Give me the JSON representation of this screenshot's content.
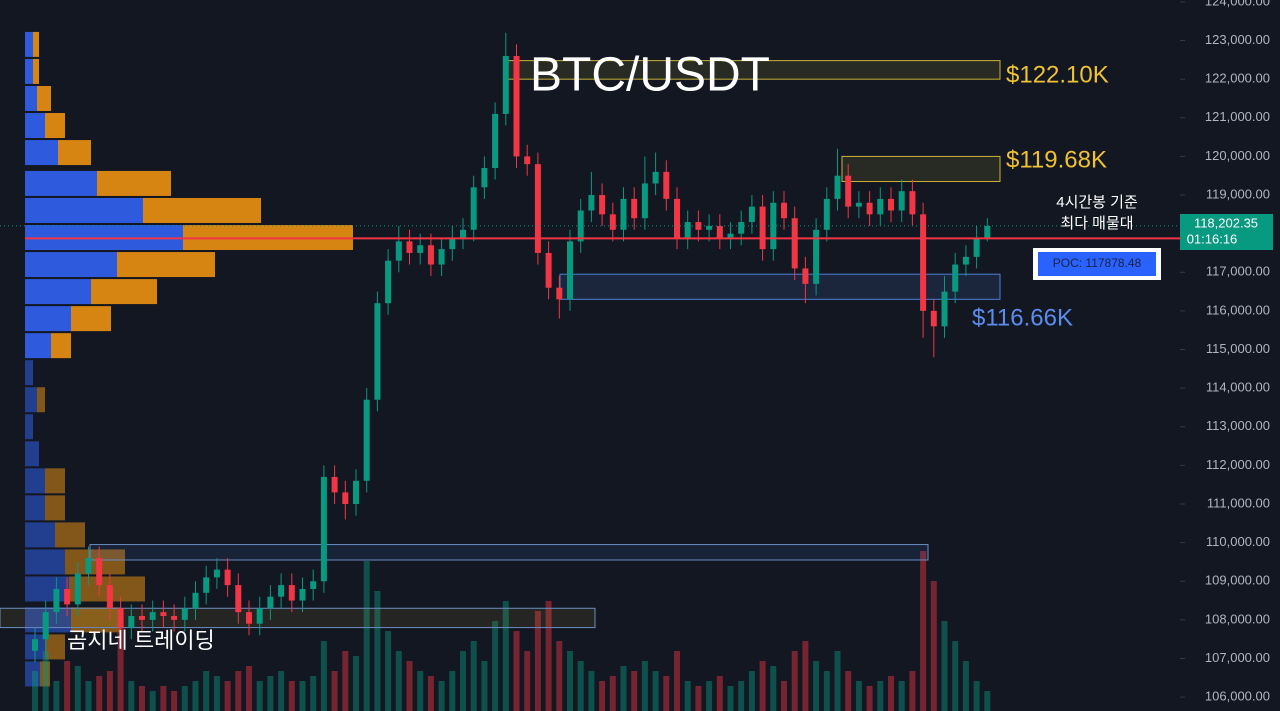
{
  "chart_data": {
    "type": "candlestick",
    "title": "BTC/USDT",
    "ylim": [
      105640,
      124050
    ],
    "yticks": [
      {
        "value": 106000,
        "label": "106,000.00"
      },
      {
        "value": 107000,
        "label": "107,000.00"
      },
      {
        "value": 108000,
        "label": "108,000.00"
      },
      {
        "value": 109000,
        "label": "109,000.00"
      },
      {
        "value": 110000,
        "label": "110,000.00"
      },
      {
        "value": 111000,
        "label": "111,000.00"
      },
      {
        "value": 112000,
        "label": "112,000.00"
      },
      {
        "value": 113000,
        "label": "113,000.00"
      },
      {
        "value": 114000,
        "label": "114,000.00"
      },
      {
        "value": 115000,
        "label": "115,000.00"
      },
      {
        "value": 116000,
        "label": "116,000.00"
      },
      {
        "value": 117000,
        "label": "117,000.00"
      },
      {
        "value": 118000,
        "label": "118,000.00"
      },
      {
        "value": 119000,
        "label": "119,000.00"
      },
      {
        "value": 120000,
        "label": "120,000.00"
      },
      {
        "value": 121000,
        "label": "121,000.00"
      },
      {
        "value": 122000,
        "label": "122,000.00"
      },
      {
        "value": 123000,
        "label": "123,000.00"
      },
      {
        "value": 124000,
        "label": "124,000.00"
      }
    ],
    "colors": {
      "up": "#089981",
      "down": "#f23645"
    },
    "candles": {
      "open": [
        107200,
        107500,
        108200,
        108800,
        108400,
        109200,
        109600,
        108900,
        108300,
        107800,
        108100,
        108000,
        108200,
        108100,
        108000,
        108300,
        108700,
        109100,
        109300,
        108900,
        108200,
        107900,
        108300,
        108600,
        108900,
        108500,
        108800,
        109000,
        111700,
        111300,
        111000,
        111600,
        113700,
        116200,
        117300,
        117800,
        117500,
        117700,
        117200,
        117600,
        117900,
        118100,
        119200,
        119700,
        121100,
        122600,
        120000,
        119800,
        117500,
        116600,
        116300,
        117800,
        118600,
        119000,
        118500,
        118100,
        118900,
        118400,
        119300,
        119600,
        118900,
        117900,
        118300,
        118100,
        118200,
        117900,
        118000,
        118300,
        118700,
        117600,
        118800,
        118400,
        117100,
        116700,
        118100,
        118900,
        119500,
        118700,
        118800,
        118500,
        118900,
        118600,
        119100,
        118500,
        116000,
        115600,
        116500,
        117200,
        117400,
        117900
      ],
      "high": [
        107800,
        108500,
        109100,
        109100,
        109500,
        109900,
        109900,
        109200,
        108600,
        108400,
        108400,
        108500,
        108500,
        108400,
        108600,
        109000,
        109400,
        109600,
        109600,
        109200,
        108500,
        108600,
        108900,
        109200,
        109200,
        109100,
        109300,
        112000,
        112000,
        111600,
        111900,
        114000,
        116500,
        117600,
        118200,
        118100,
        118000,
        118000,
        117900,
        118200,
        118400,
        119500,
        120000,
        121400,
        123200,
        122900,
        120300,
        120100,
        117800,
        116900,
        118100,
        118900,
        119600,
        119300,
        118800,
        119200,
        119200,
        120000,
        120100,
        119900,
        119200,
        118600,
        118600,
        118500,
        118500,
        118300,
        118600,
        119000,
        119000,
        119100,
        119100,
        118700,
        117400,
        118400,
        119200,
        120200,
        119800,
        119100,
        119100,
        119200,
        119200,
        119400,
        119400,
        118800,
        116300,
        116900,
        117500,
        117700,
        118200,
        118400
      ],
      "low": [
        106900,
        107200,
        107900,
        108100,
        108100,
        108900,
        108600,
        108000,
        107500,
        107500,
        107700,
        107700,
        107800,
        107700,
        107700,
        108000,
        108400,
        108800,
        108600,
        107900,
        107600,
        107600,
        108000,
        108300,
        108200,
        108200,
        108500,
        108700,
        111000,
        110600,
        110700,
        111300,
        113400,
        115900,
        117000,
        117200,
        117200,
        116900,
        116900,
        117300,
        117600,
        117800,
        118900,
        119400,
        120800,
        119700,
        119500,
        117200,
        116300,
        115800,
        116000,
        117500,
        118300,
        118200,
        117800,
        117800,
        118100,
        118100,
        119000,
        118600,
        117600,
        117600,
        117800,
        117800,
        117600,
        117600,
        117700,
        118000,
        117300,
        117300,
        118100,
        116800,
        116200,
        116400,
        117800,
        118600,
        118400,
        118400,
        118200,
        118200,
        118300,
        118300,
        118200,
        115300,
        114800,
        115300,
        116200,
        116900,
        117100,
        117800
      ],
      "close": [
        107500,
        108200,
        108800,
        108400,
        109200,
        109600,
        108900,
        108300,
        107800,
        108100,
        108000,
        108200,
        108100,
        108000,
        108300,
        108700,
        109100,
        109300,
        108900,
        108200,
        107900,
        108300,
        108600,
        108900,
        108500,
        108800,
        109000,
        111700,
        111300,
        111000,
        111600,
        113700,
        116200,
        117300,
        117800,
        117500,
        117700,
        117200,
        117600,
        117900,
        118100,
        119200,
        119700,
        121100,
        122600,
        120000,
        119800,
        117500,
        116600,
        116300,
        117800,
        118600,
        119000,
        118500,
        118100,
        118900,
        118400,
        119300,
        119600,
        118900,
        117900,
        118300,
        118100,
        118200,
        117900,
        118000,
        118300,
        118700,
        117600,
        118800,
        118400,
        117100,
        116700,
        118100,
        118900,
        119500,
        118700,
        118800,
        118500,
        118900,
        118600,
        119100,
        118500,
        116000,
        115600,
        116500,
        117200,
        117400,
        117900,
        118200
      ],
      "volume": [
        40,
        60,
        30,
        50,
        45,
        30,
        35,
        40,
        90,
        30,
        25,
        20,
        25,
        20,
        25,
        30,
        40,
        35,
        30,
        40,
        45,
        30,
        35,
        40,
        30,
        30,
        35,
        70,
        40,
        60,
        55,
        150,
        120,
        80,
        60,
        50,
        40,
        35,
        30,
        40,
        60,
        70,
        50,
        90,
        110,
        80,
        60,
        100,
        110,
        70,
        60,
        50,
        40,
        30,
        35,
        45,
        40,
        50,
        40,
        35,
        60,
        30,
        25,
        30,
        35,
        25,
        30,
        40,
        50,
        45,
        30,
        60,
        70,
        50,
        40,
        60,
        40,
        30,
        25,
        30,
        35,
        30,
        40,
        160,
        130,
        90,
        70,
        50,
        30,
        20
      ]
    },
    "volume_profile": {
      "prices": [
        122900,
        122200,
        121500,
        120800,
        120100,
        119300,
        118600,
        117900,
        117200,
        116500,
        115800,
        115100,
        114400,
        113700,
        113000,
        112300,
        111600,
        110900,
        110200,
        109500,
        108800,
        108000,
        107300,
        106600
      ],
      "buy": [
        8,
        8,
        12,
        20,
        33,
        72,
        118,
        158,
        92,
        66,
        46,
        26,
        8,
        12,
        8,
        14,
        20,
        20,
        30,
        40,
        44,
        46,
        20,
        15
      ],
      "sell": [
        6,
        6,
        14,
        20,
        33,
        74,
        118,
        170,
        98,
        66,
        40,
        20,
        0,
        8,
        0,
        0,
        20,
        20,
        30,
        60,
        76,
        50,
        20,
        10
      ]
    },
    "zones": [
      {
        "low": 122000,
        "high": 122480,
        "label": "$122.10K"
      },
      {
        "low": 119350,
        "high": 120000,
        "label": "$119.68K"
      },
      {
        "low": 116300,
        "high": 116950,
        "label": "$116.66K"
      },
      {
        "low": 109550,
        "high": 109950
      },
      {
        "low": 107800,
        "high": 108300
      }
    ],
    "poc": {
      "value": 117878.48,
      "label": "POC: 117878.48"
    },
    "current_price": {
      "value": 118202.35,
      "label": "118,202.35",
      "countdown": "01:16:16"
    },
    "annotations": [
      "4시간봉 기준",
      "최다 매물대",
      "곰지네 트레이딩"
    ]
  }
}
